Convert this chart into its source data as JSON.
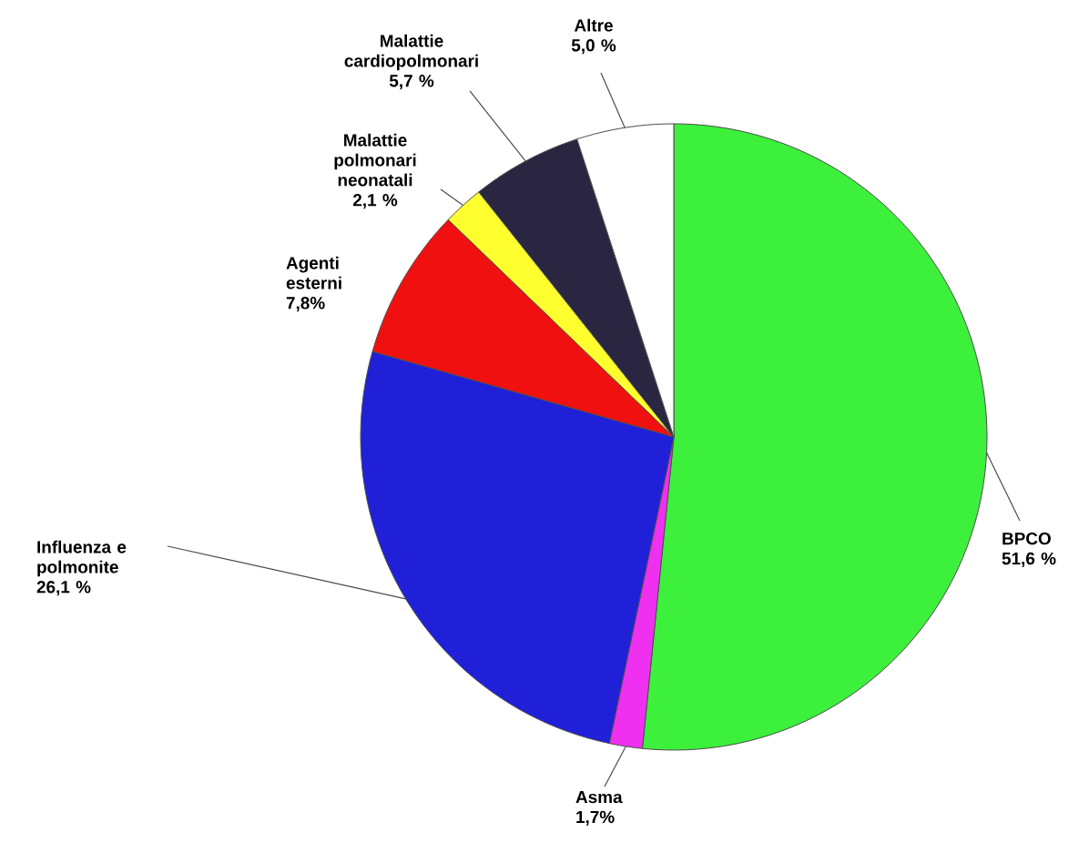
{
  "chart_data": {
    "type": "pie",
    "categories": [
      "BPCO",
      "Asma",
      "Influenza e polmonite",
      "Agenti esterni",
      "Malattie polmonari neonatali",
      "Malattie cardiopolmonari",
      "Altre"
    ],
    "values": [
      51.6,
      1.7,
      26.1,
      7.8,
      2.1,
      5.7,
      5.0
    ],
    "value_labels": [
      "51,6 %",
      "1,7%",
      "26,1 %",
      "7,8%",
      "2,1 %",
      "5,7 %",
      "5,0 %"
    ],
    "colors": [
      "#3cf03c",
      "#f030f0",
      "#2020d8",
      "#f01010",
      "#ffff30",
      "#2a2540",
      "#ffffff"
    ]
  }
}
